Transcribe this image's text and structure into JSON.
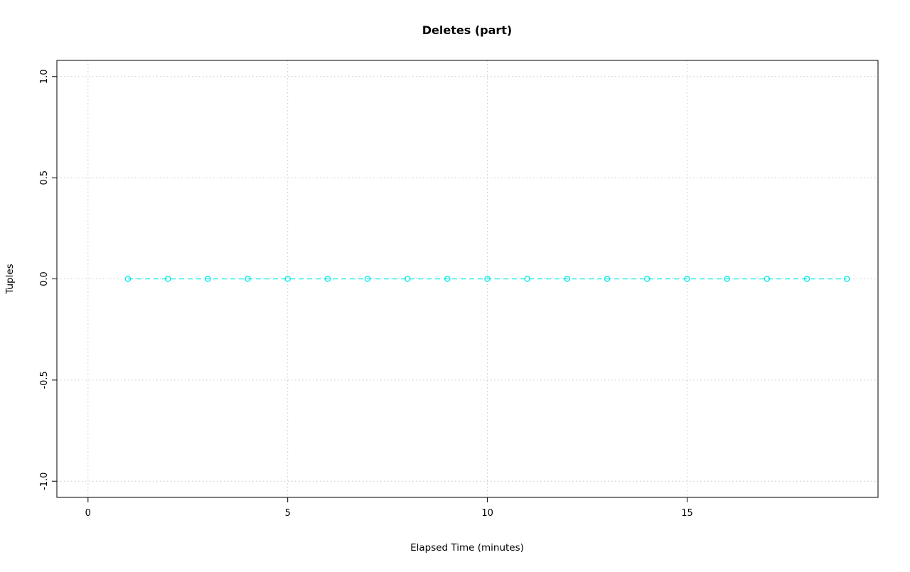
{
  "chart_data": {
    "type": "line",
    "title": "Deletes (part)",
    "xlabel": "Elapsed Time (minutes)",
    "ylabel": "Tuples",
    "x": [
      1,
      2,
      3,
      4,
      5,
      6,
      7,
      8,
      9,
      10,
      11,
      12,
      13,
      14,
      15,
      16,
      17,
      18,
      19
    ],
    "series": [
      {
        "name": "Deletes (part)",
        "values": [
          0,
          0,
          0,
          0,
          0,
          0,
          0,
          0,
          0,
          0,
          0,
          0,
          0,
          0,
          0,
          0,
          0,
          0,
          0
        ],
        "color": "#00e5e5",
        "line_style": "dashed",
        "marker": "open-circle"
      }
    ],
    "xlim": [
      -0.78,
      19.78
    ],
    "ylim": [
      -1.08,
      1.08
    ],
    "xticks": {
      "values": [
        0,
        5,
        10,
        15
      ],
      "labels": [
        "0",
        "5",
        "10",
        "15"
      ]
    },
    "yticks": {
      "values": [
        -1,
        -0.5,
        0,
        0.5,
        1
      ],
      "labels": [
        "-1.0",
        "-0.5",
        "0.0",
        "0.5",
        "1.0"
      ]
    },
    "grid": "dotted",
    "grid_color": "#c8c8c8",
    "border_color": "#000000",
    "legend": "none"
  }
}
